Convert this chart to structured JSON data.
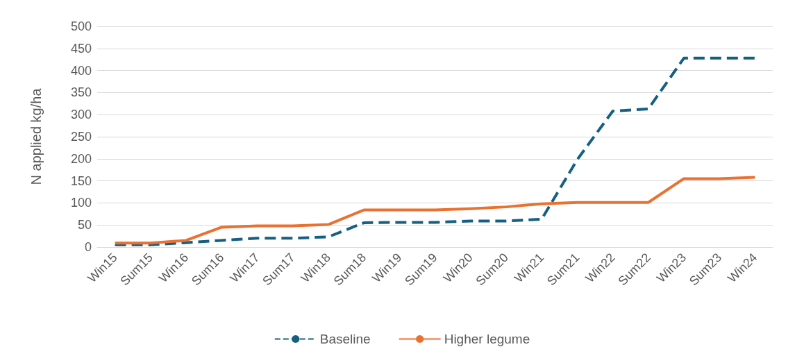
{
  "chart_data": {
    "type": "line",
    "ylabel": "N applied kg/ha",
    "categories": [
      "Win15",
      "Sum15",
      "Win16",
      "Sum16",
      "Win17",
      "Sum17",
      "Win18",
      "Sum18",
      "Win19",
      "Sum19",
      "Win20",
      "Sum20",
      "Win21",
      "Sum21",
      "Win22",
      "Sum22",
      "Win23",
      "Sum23",
      "Win24"
    ],
    "series": [
      {
        "name": "Baseline",
        "color": "#156082",
        "line_style": "dashed",
        "values": [
          5,
          5,
          10,
          15,
          20,
          20,
          23,
          55,
          56,
          56,
          59,
          59,
          63,
          198,
          308,
          313,
          428,
          428,
          428
        ]
      },
      {
        "name": "Higher legume",
        "color": "#e97132",
        "line_style": "solid",
        "values": [
          9,
          9,
          15,
          45,
          48,
          48,
          51,
          84,
          84,
          84,
          87,
          91,
          98,
          101,
          101,
          101,
          155,
          155,
          158
        ]
      }
    ],
    "ylim": [
      0,
      500
    ],
    "yticks": [
      0,
      50,
      100,
      150,
      200,
      250,
      300,
      350,
      400,
      450,
      500
    ],
    "grid": "y",
    "legend": "bottom",
    "marker": "none"
  }
}
